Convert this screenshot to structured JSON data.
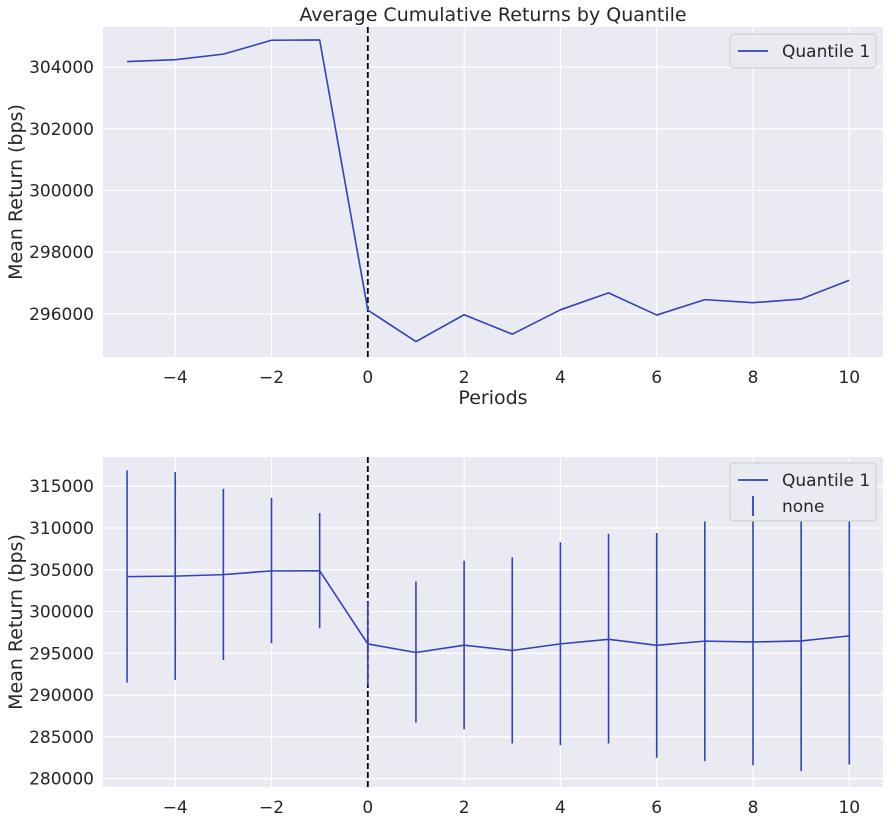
{
  "colors": {
    "series": "#3142bd",
    "panel_bg": "#eaeaf2",
    "grid": "#ffffff",
    "vline": "#000000"
  },
  "chart_data": [
    {
      "type": "line",
      "title": "Average Cumulative Returns by Quantile",
      "xlabel": "Periods",
      "ylabel": "Mean Return (bps)",
      "xlim": [
        -5.5,
        10.7
      ],
      "ylim": [
        294600,
        305300
      ],
      "xticks": [
        -4,
        -2,
        0,
        2,
        4,
        6,
        8,
        10
      ],
      "xtick_labels": [
        "−4",
        "−2",
        "0",
        "2",
        "4",
        "6",
        "8",
        "10"
      ],
      "yticks": [
        296000,
        298000,
        300000,
        302000,
        304000
      ],
      "ytick_labels": [
        "296000",
        "298000",
        "300000",
        "302000",
        "304000"
      ],
      "vline_x": 0,
      "legend_position": "top-right",
      "legend": [
        "Quantile 1"
      ],
      "series": [
        {
          "name": "Quantile 1",
          "x": [
            -5,
            -4,
            -3,
            -2,
            -1,
            0,
            1,
            2,
            3,
            4,
            5,
            6,
            7,
            8,
            9,
            10
          ],
          "values": [
            304180,
            304240,
            304420,
            304870,
            304880,
            296120,
            295100,
            295970,
            295340,
            296130,
            296680,
            295960,
            296460,
            296360,
            296480,
            297090
          ]
        }
      ]
    },
    {
      "type": "line",
      "title": "",
      "xlabel": "",
      "ylabel": "Mean Return (bps)",
      "xlim": [
        -5.5,
        10.7
      ],
      "ylim": [
        279000,
        318500
      ],
      "xticks": [
        -4,
        -2,
        0,
        2,
        4,
        6,
        8,
        10
      ],
      "xtick_labels": [
        "−4",
        "−2",
        "0",
        "2",
        "4",
        "6",
        "8",
        "10"
      ],
      "yticks": [
        280000,
        285000,
        290000,
        295000,
        300000,
        305000,
        310000,
        315000
      ],
      "ytick_labels": [
        "280000",
        "285000",
        "290000",
        "295000",
        "300000",
        "305000",
        "310000",
        "315000"
      ],
      "vline_x": 0,
      "legend_position": "top-right",
      "legend": [
        "Quantile 1",
        "none"
      ],
      "series": [
        {
          "name": "Quantile 1",
          "x": [
            -5,
            -4,
            -3,
            -2,
            -1,
            0,
            1,
            2,
            3,
            4,
            5,
            6,
            7,
            8,
            9,
            10
          ],
          "values": [
            304180,
            304240,
            304420,
            304870,
            304880,
            296120,
            295100,
            295970,
            295340,
            296130,
            296680,
            295960,
            296460,
            296360,
            296480,
            297090
          ]
        }
      ],
      "error_bars": {
        "name": "none",
        "x": [
          -5,
          -4,
          -3,
          -2,
          -1,
          0,
          1,
          2,
          3,
          4,
          5,
          6,
          7,
          8,
          9,
          10
        ],
        "low": [
          291500,
          291800,
          294200,
          296200,
          298000,
          291200,
          286700,
          285900,
          284200,
          284000,
          284200,
          282500,
          282100,
          281600,
          280900,
          281700
        ],
        "high": [
          316900,
          316700,
          314700,
          313600,
          311800,
          301200,
          303600,
          306100,
          306500,
          308300,
          309300,
          309400,
          310800,
          311200,
          312100,
          312600
        ]
      }
    }
  ]
}
